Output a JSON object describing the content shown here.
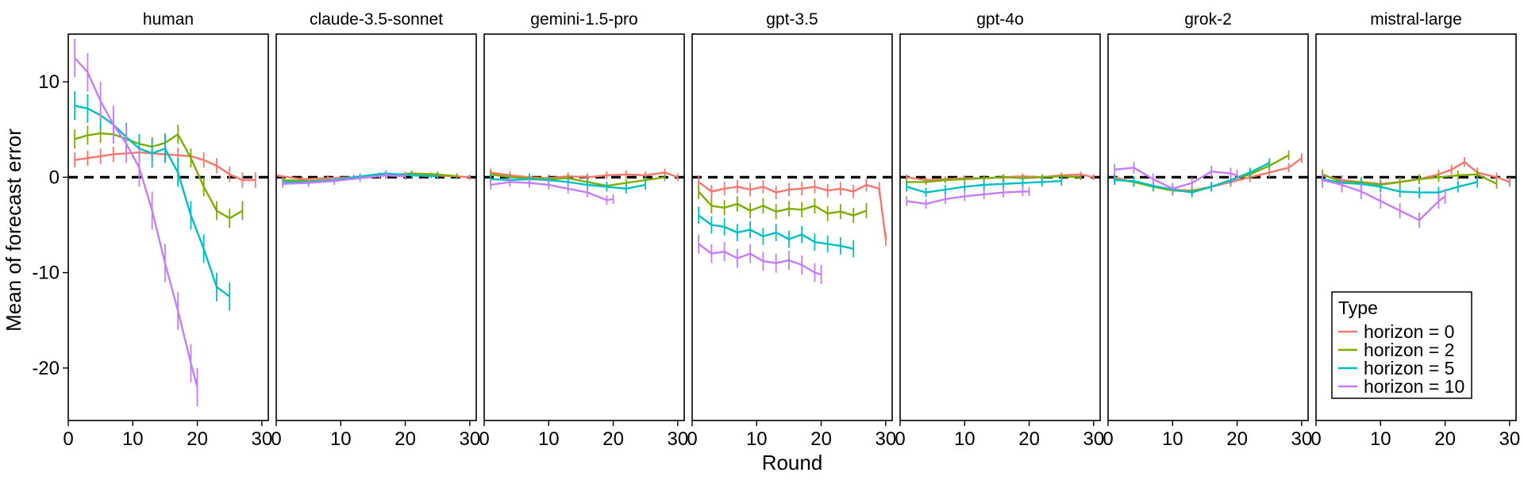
{
  "chart_data": {
    "type": "line",
    "ylabel": "Mean of forecast error",
    "xlabel": "Round",
    "xlim": [
      0,
      31
    ],
    "ylim": [
      -25.5,
      15
    ],
    "xticks": [
      0,
      10,
      20,
      30
    ],
    "xtick_labels": [
      "0",
      "10",
      "20",
      "30"
    ],
    "yticks": [
      10,
      0,
      -10,
      -20
    ],
    "ytick_labels": [
      "10",
      "0",
      "-10",
      "-20"
    ],
    "reference_line": 0,
    "legend": {
      "title": "Type",
      "placement": "bottom-right",
      "entries": [
        {
          "label": "horizon = 0",
          "color": "#F8766D"
        },
        {
          "label": "horizon = 2",
          "color": "#7CAE00"
        },
        {
          "label": "horizon = 5",
          "color": "#00BFC4"
        },
        {
          "label": "horizon = 10",
          "color": "#C77CFF"
        }
      ]
    },
    "panels": [
      {
        "title": "human",
        "series": [
          {
            "name": "horizon = 0",
            "x": [
              1,
              3,
              5,
              7,
              9,
              11,
              13,
              15,
              17,
              19,
              21,
              23,
              25,
              27,
              29
            ],
            "y": [
              1.8,
              2.0,
              2.2,
              2.4,
              2.5,
              2.6,
              2.5,
              2.4,
              2.3,
              2.2,
              1.8,
              1.2,
              0.3,
              -0.3,
              -0.3
            ],
            "err": 0.8
          },
          {
            "name": "horizon = 2",
            "x": [
              1,
              3,
              5,
              7,
              9,
              11,
              13,
              15,
              17,
              19,
              21,
              23,
              25,
              27
            ],
            "y": [
              4.0,
              4.4,
              4.6,
              4.5,
              4.0,
              3.5,
              3.2,
              3.6,
              4.5,
              2.0,
              -1.0,
              -3.5,
              -4.3,
              -3.5
            ],
            "err": 1.0
          },
          {
            "name": "horizon = 5",
            "x": [
              1,
              3,
              5,
              7,
              9,
              11,
              13,
              15,
              17,
              19,
              21,
              23,
              25
            ],
            "y": [
              7.5,
              7.2,
              6.5,
              5.5,
              4.2,
              3.0,
              2.5,
              3.0,
              0.5,
              -4.0,
              -7.5,
              -11.5,
              -12.5
            ],
            "err": 1.5
          },
          {
            "name": "horizon = 10",
            "x": [
              1,
              3,
              5,
              7,
              9,
              11,
              13,
              15,
              17,
              19,
              20
            ],
            "y": [
              12.5,
              11.0,
              8.0,
              5.5,
              3.5,
              1.0,
              -3.5,
              -9.0,
              -14.0,
              -19.5,
              -22.0
            ],
            "err": 2.0
          }
        ]
      },
      {
        "title": "claude-3.5-sonnet",
        "series": [
          {
            "name": "horizon = 0",
            "x": [
              0,
              4,
              8,
              12,
              16,
              20,
              24,
              28,
              30
            ],
            "y": [
              0.2,
              -0.2,
              -0.1,
              0.0,
              0.2,
              0.3,
              0.2,
              0.1,
              0.0
            ],
            "err": 0.3
          },
          {
            "name": "horizon = 2",
            "x": [
              1,
              5,
              9,
              13,
              17,
              21,
              25,
              28
            ],
            "y": [
              -0.3,
              -0.4,
              -0.3,
              -0.1,
              0.2,
              0.4,
              0.3,
              0.1
            ],
            "err": 0.3
          },
          {
            "name": "horizon = 5",
            "x": [
              1,
              5,
              9,
              13,
              17,
              21,
              25
            ],
            "y": [
              -0.5,
              -0.5,
              -0.3,
              0.1,
              0.4,
              0.2,
              0.1
            ],
            "err": 0.3
          },
          {
            "name": "horizon = 10",
            "x": [
              1,
              5,
              9,
              13,
              17,
              20
            ],
            "y": [
              -0.7,
              -0.6,
              -0.4,
              -0.1,
              0.2,
              0.1
            ],
            "err": 0.4
          }
        ]
      },
      {
        "title": "gemini-1.5-pro",
        "series": [
          {
            "name": "horizon = 0",
            "x": [
              1,
              4,
              7,
              10,
              13,
              16,
              19,
              22,
              25,
              28,
              30
            ],
            "y": [
              0.5,
              0.2,
              0.0,
              -0.1,
              0.1,
              0.0,
              0.2,
              0.3,
              0.2,
              0.5,
              0.0
            ],
            "err": 0.4
          },
          {
            "name": "horizon = 2",
            "x": [
              1,
              4,
              7,
              10,
              13,
              16,
              19,
              22,
              25,
              28
            ],
            "y": [
              0.3,
              0.0,
              -0.1,
              -0.2,
              -0.1,
              -0.5,
              -0.9,
              -0.6,
              -0.3,
              0.0
            ],
            "err": 0.4
          },
          {
            "name": "horizon = 5",
            "x": [
              1,
              4,
              7,
              10,
              13,
              16,
              19,
              22,
              25
            ],
            "y": [
              -0.2,
              -0.3,
              -0.2,
              -0.3,
              -0.5,
              -0.8,
              -1.0,
              -1.2,
              -0.8
            ],
            "err": 0.5
          },
          {
            "name": "horizon = 10",
            "x": [
              1,
              4,
              7,
              10,
              13,
              16,
              19,
              20
            ],
            "y": [
              -0.8,
              -0.5,
              -0.6,
              -0.8,
              -1.2,
              -1.6,
              -2.4,
              -2.3
            ],
            "err": 0.5
          }
        ]
      },
      {
        "title": "gpt-3.5",
        "series": [
          {
            "name": "horizon = 0",
            "x": [
              1,
              3,
              5,
              7,
              9,
              11,
              13,
              15,
              17,
              19,
              21,
              23,
              25,
              27,
              29,
              30
            ],
            "y": [
              -0.5,
              -1.5,
              -1.2,
              -1.0,
              -1.3,
              -1.0,
              -1.6,
              -1.3,
              -1.2,
              -1.0,
              -1.4,
              -1.2,
              -1.5,
              -0.8,
              -1.2,
              -6.5
            ],
            "err": 0.7
          },
          {
            "name": "horizon = 2",
            "x": [
              1,
              3,
              5,
              7,
              9,
              11,
              13,
              15,
              17,
              19,
              21,
              23,
              25,
              27
            ],
            "y": [
              -1.5,
              -3.0,
              -3.2,
              -2.8,
              -3.5,
              -3.0,
              -3.6,
              -3.3,
              -3.4,
              -3.0,
              -3.8,
              -3.6,
              -4.0,
              -3.5
            ],
            "err": 0.8
          },
          {
            "name": "horizon = 5",
            "x": [
              1,
              3,
              5,
              7,
              9,
              11,
              13,
              15,
              17,
              19,
              21,
              23,
              25
            ],
            "y": [
              -4.0,
              -5.0,
              -5.2,
              -5.8,
              -5.5,
              -6.2,
              -5.8,
              -6.5,
              -6.0,
              -6.8,
              -7.0,
              -7.2,
              -7.5
            ],
            "err": 0.9
          },
          {
            "name": "horizon = 10",
            "x": [
              1,
              3,
              5,
              7,
              9,
              11,
              13,
              15,
              17,
              19,
              20
            ],
            "y": [
              -7.0,
              -8.0,
              -7.8,
              -8.5,
              -8.0,
              -8.8,
              -9.0,
              -8.7,
              -9.2,
              -10.0,
              -10.2
            ],
            "err": 1.0
          }
        ]
      },
      {
        "title": "gpt-4o",
        "series": [
          {
            "name": "horizon = 0",
            "x": [
              1,
              4,
              7,
              10,
              13,
              16,
              19,
              22,
              25,
              28,
              30
            ],
            "y": [
              0.0,
              -0.3,
              -0.2,
              -0.1,
              -0.1,
              0.0,
              0.1,
              0.0,
              0.2,
              0.3,
              0.0
            ],
            "err": 0.3
          },
          {
            "name": "horizon = 2",
            "x": [
              1,
              4,
              7,
              10,
              13,
              16,
              19,
              22,
              25,
              28
            ],
            "y": [
              -0.5,
              -0.5,
              -0.3,
              -0.2,
              -0.1,
              0.0,
              -0.1,
              0.0,
              0.1,
              0.0
            ],
            "err": 0.3
          },
          {
            "name": "horizon = 5",
            "x": [
              1,
              4,
              7,
              10,
              13,
              16,
              19,
              22,
              25
            ],
            "y": [
              -1.0,
              -1.6,
              -1.3,
              -1.0,
              -0.8,
              -0.7,
              -0.6,
              -0.5,
              -0.4
            ],
            "err": 0.5
          },
          {
            "name": "horizon = 10",
            "x": [
              1,
              4,
              7,
              10,
              13,
              16,
              19,
              20
            ],
            "y": [
              -2.5,
              -2.8,
              -2.3,
              -2.0,
              -1.8,
              -1.6,
              -1.5,
              -1.5
            ],
            "err": 0.5
          }
        ]
      },
      {
        "title": "grok-2",
        "series": [
          {
            "name": "horizon = 0",
            "x": [
              1,
              4,
              7,
              10,
              13,
              16,
              19,
              22,
              25,
              28,
              30
            ],
            "y": [
              0.0,
              -0.5,
              -0.9,
              -1.3,
              -1.4,
              -1.0,
              -0.5,
              0.0,
              0.5,
              1.0,
              2.0
            ],
            "err": 0.5
          },
          {
            "name": "horizon = 2",
            "x": [
              1,
              4,
              7,
              10,
              13,
              16,
              19,
              22,
              25,
              28
            ],
            "y": [
              -0.2,
              -0.5,
              -1.0,
              -1.4,
              -1.5,
              -1.0,
              -0.3,
              0.3,
              1.2,
              2.3
            ],
            "err": 0.5
          },
          {
            "name": "horizon = 5",
            "x": [
              1,
              4,
              7,
              10,
              13,
              16,
              19,
              22,
              25
            ],
            "y": [
              -0.3,
              -0.4,
              -0.9,
              -1.3,
              -1.6,
              -1.0,
              -0.3,
              0.5,
              1.5
            ],
            "err": 0.5
          },
          {
            "name": "horizon = 10",
            "x": [
              1,
              4,
              7,
              10,
              13,
              16,
              19,
              20
            ],
            "y": [
              0.8,
              1.0,
              -0.2,
              -1.2,
              -0.6,
              0.6,
              0.4,
              0.2
            ],
            "err": 0.6
          }
        ]
      },
      {
        "title": "mistral-large",
        "series": [
          {
            "name": "horizon = 0",
            "x": [
              1,
              4,
              7,
              10,
              13,
              16,
              19,
              21,
              23,
              25,
              28,
              30
            ],
            "y": [
              0.2,
              -0.3,
              -0.5,
              -0.7,
              -0.5,
              -0.2,
              0.3,
              0.8,
              1.6,
              0.5,
              0.0,
              -0.5
            ],
            "err": 0.5
          },
          {
            "name": "horizon = 2",
            "x": [
              1,
              4,
              7,
              10,
              13,
              16,
              19,
              22,
              25,
              28
            ],
            "y": [
              0.3,
              -0.5,
              -0.5,
              -0.8,
              -0.5,
              -0.2,
              0.0,
              0.2,
              0.3,
              -0.7
            ],
            "err": 0.5
          },
          {
            "name": "horizon = 5",
            "x": [
              1,
              4,
              7,
              10,
              13,
              16,
              19,
              22,
              25
            ],
            "y": [
              -0.2,
              -0.6,
              -0.7,
              -1.0,
              -1.5,
              -1.6,
              -1.6,
              -1.0,
              -0.5
            ],
            "err": 0.6
          },
          {
            "name": "horizon = 10",
            "x": [
              1,
              4,
              7,
              10,
              13,
              16,
              19,
              20
            ],
            "y": [
              -0.3,
              -0.8,
              -1.5,
              -2.5,
              -3.5,
              -4.5,
              -2.5,
              -2.0
            ],
            "err": 0.8
          }
        ]
      }
    ]
  }
}
